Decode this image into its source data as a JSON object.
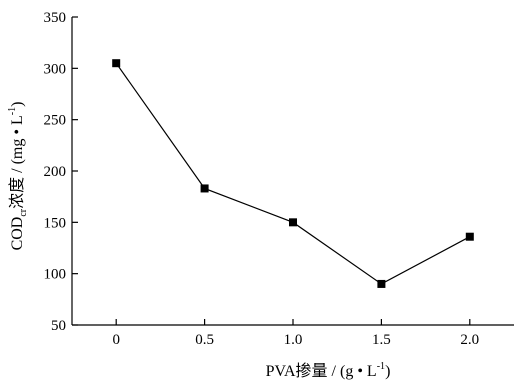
{
  "chart_data": {
    "type": "line",
    "x": [
      0,
      0.5,
      1.0,
      1.5,
      2.0
    ],
    "x_tick_labels": [
      "0",
      "0.5",
      "1.0",
      "1.5",
      "2.0"
    ],
    "series": [
      {
        "values": [
          305,
          183,
          150,
          90,
          136
        ],
        "color": "#000000",
        "marker": "square"
      }
    ],
    "xlabel": {
      "main": "PVA掺量 / (g • L",
      "sup": "-1",
      "tail": ")"
    },
    "ylabel": {
      "main": "COD",
      "sub": "cr",
      "mid": "浓度 / (mg • L",
      "sup": "-1",
      "tail": ")"
    },
    "xlim": [
      -0.25,
      2.25
    ],
    "ylim": [
      50,
      350
    ],
    "y_ticks": [
      50,
      100,
      150,
      200,
      250,
      300,
      350
    ],
    "grid": false
  }
}
